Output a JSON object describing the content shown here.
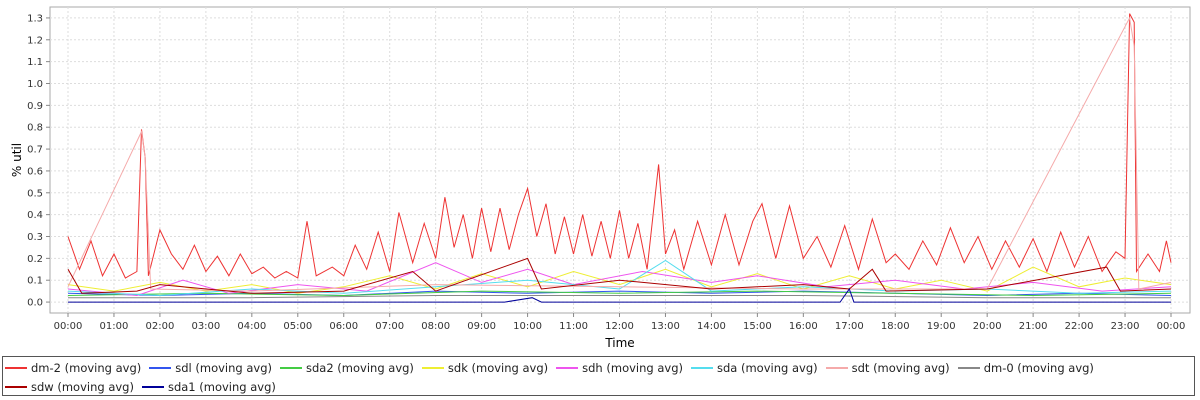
{
  "chart_data": {
    "type": "line",
    "title": "",
    "xlabel": "Time",
    "ylabel": "% util",
    "ylim": [
      -0.05,
      1.35
    ],
    "yticks": [
      "0.0",
      "0.1",
      "0.2",
      "0.3",
      "0.4",
      "0.5",
      "0.6",
      "0.7",
      "0.8",
      "0.9",
      "1.0",
      "1.1",
      "1.2",
      "1.3"
    ],
    "xticks": [
      "00:00",
      "01:00",
      "02:00",
      "03:00",
      "04:00",
      "05:00",
      "06:00",
      "07:00",
      "08:00",
      "09:00",
      "10:00",
      "11:00",
      "12:00",
      "13:00",
      "14:00",
      "15:00",
      "16:00",
      "17:00",
      "18:00",
      "19:00",
      "20:00",
      "21:00",
      "22:00",
      "23:00",
      "00:00"
    ],
    "xlim_hours": [
      0,
      24
    ],
    "grid": true,
    "legend_position": "bottom",
    "series": [
      {
        "name": "dm-2 (moving avg)",
        "color": "#ee3333",
        "points": [
          [
            0,
            0.3
          ],
          [
            0.25,
            0.15
          ],
          [
            0.5,
            0.28
          ],
          [
            0.75,
            0.12
          ],
          [
            1.0,
            0.22
          ],
          [
            1.25,
            0.11
          ],
          [
            1.5,
            0.14
          ],
          [
            1.6,
            0.79
          ],
          [
            1.68,
            0.66
          ],
          [
            1.75,
            0.12
          ],
          [
            2.0,
            0.33
          ],
          [
            2.25,
            0.22
          ],
          [
            2.5,
            0.15
          ],
          [
            2.75,
            0.26
          ],
          [
            3.0,
            0.14
          ],
          [
            3.25,
            0.21
          ],
          [
            3.5,
            0.12
          ],
          [
            3.75,
            0.22
          ],
          [
            4.0,
            0.13
          ],
          [
            4.25,
            0.16
          ],
          [
            4.5,
            0.11
          ],
          [
            4.75,
            0.14
          ],
          [
            5.0,
            0.11
          ],
          [
            5.2,
            0.37
          ],
          [
            5.4,
            0.12
          ],
          [
            5.75,
            0.16
          ],
          [
            6.0,
            0.12
          ],
          [
            6.25,
            0.26
          ],
          [
            6.5,
            0.15
          ],
          [
            6.75,
            0.32
          ],
          [
            7.0,
            0.14
          ],
          [
            7.2,
            0.41
          ],
          [
            7.5,
            0.18
          ],
          [
            7.75,
            0.36
          ],
          [
            8.0,
            0.2
          ],
          [
            8.2,
            0.48
          ],
          [
            8.4,
            0.25
          ],
          [
            8.6,
            0.4
          ],
          [
            8.8,
            0.2
          ],
          [
            9.0,
            0.43
          ],
          [
            9.2,
            0.23
          ],
          [
            9.4,
            0.43
          ],
          [
            9.6,
            0.24
          ],
          [
            9.8,
            0.4
          ],
          [
            10.0,
            0.52
          ],
          [
            10.2,
            0.3
          ],
          [
            10.4,
            0.45
          ],
          [
            10.6,
            0.22
          ],
          [
            10.8,
            0.39
          ],
          [
            11.0,
            0.22
          ],
          [
            11.2,
            0.4
          ],
          [
            11.4,
            0.21
          ],
          [
            11.6,
            0.37
          ],
          [
            11.8,
            0.2
          ],
          [
            12.0,
            0.42
          ],
          [
            12.2,
            0.2
          ],
          [
            12.4,
            0.36
          ],
          [
            12.6,
            0.15
          ],
          [
            12.85,
            0.63
          ],
          [
            13.0,
            0.22
          ],
          [
            13.2,
            0.33
          ],
          [
            13.4,
            0.15
          ],
          [
            13.7,
            0.37
          ],
          [
            14.0,
            0.17
          ],
          [
            14.3,
            0.4
          ],
          [
            14.6,
            0.17
          ],
          [
            14.9,
            0.37
          ],
          [
            15.1,
            0.45
          ],
          [
            15.4,
            0.2
          ],
          [
            15.7,
            0.44
          ],
          [
            16.0,
            0.2
          ],
          [
            16.3,
            0.3
          ],
          [
            16.6,
            0.16
          ],
          [
            16.9,
            0.35
          ],
          [
            17.2,
            0.15
          ],
          [
            17.5,
            0.38
          ],
          [
            17.8,
            0.18
          ],
          [
            18.0,
            0.22
          ],
          [
            18.3,
            0.15
          ],
          [
            18.6,
            0.28
          ],
          [
            18.9,
            0.17
          ],
          [
            19.2,
            0.34
          ],
          [
            19.5,
            0.18
          ],
          [
            19.8,
            0.3
          ],
          [
            20.1,
            0.15
          ],
          [
            20.4,
            0.28
          ],
          [
            20.7,
            0.16
          ],
          [
            21.0,
            0.29
          ],
          [
            21.3,
            0.14
          ],
          [
            21.6,
            0.32
          ],
          [
            21.9,
            0.16
          ],
          [
            22.2,
            0.3
          ],
          [
            22.5,
            0.14
          ],
          [
            22.8,
            0.23
          ],
          [
            23.0,
            0.2
          ],
          [
            23.1,
            1.32
          ],
          [
            23.2,
            1.28
          ],
          [
            23.25,
            0.14
          ],
          [
            23.5,
            0.22
          ],
          [
            23.75,
            0.14
          ],
          [
            23.9,
            0.28
          ],
          [
            24.0,
            0.18
          ]
        ]
      },
      {
        "name": "sdl (moving avg)",
        "color": "#3355ee",
        "points": [
          [
            0,
            0.04
          ],
          [
            2,
            0.03
          ],
          [
            4,
            0.04
          ],
          [
            6,
            0.03
          ],
          [
            8,
            0.05
          ],
          [
            10,
            0.04
          ],
          [
            12,
            0.05
          ],
          [
            14,
            0.04
          ],
          [
            16,
            0.05
          ],
          [
            18,
            0.04
          ],
          [
            20,
            0.03
          ],
          [
            22,
            0.04
          ],
          [
            24,
            0.03
          ]
        ]
      },
      {
        "name": "sda2 (moving avg)",
        "color": "#44cc44",
        "points": [
          [
            0,
            0.03
          ],
          [
            3,
            0.04
          ],
          [
            6,
            0.03
          ],
          [
            9,
            0.05
          ],
          [
            12,
            0.04
          ],
          [
            15,
            0.05
          ],
          [
            18,
            0.04
          ],
          [
            21,
            0.03
          ],
          [
            24,
            0.04
          ]
        ]
      },
      {
        "name": "sdk (moving avg)",
        "color": "#eeee33",
        "points": [
          [
            0,
            0.08
          ],
          [
            1,
            0.05
          ],
          [
            2,
            0.09
          ],
          [
            3,
            0.05
          ],
          [
            4,
            0.08
          ],
          [
            5,
            0.04
          ],
          [
            6,
            0.07
          ],
          [
            7,
            0.12
          ],
          [
            8,
            0.06
          ],
          [
            9,
            0.13
          ],
          [
            10,
            0.07
          ],
          [
            11,
            0.14
          ],
          [
            12,
            0.08
          ],
          [
            13,
            0.15
          ],
          [
            14,
            0.07
          ],
          [
            15,
            0.13
          ],
          [
            16,
            0.06
          ],
          [
            17,
            0.12
          ],
          [
            18,
            0.06
          ],
          [
            19,
            0.1
          ],
          [
            20,
            0.05
          ],
          [
            21,
            0.16
          ],
          [
            22,
            0.07
          ],
          [
            23,
            0.11
          ],
          [
            24,
            0.08
          ]
        ]
      },
      {
        "name": "sdh (moving avg)",
        "color": "#ee55ee",
        "points": [
          [
            0,
            0.06
          ],
          [
            1.5,
            0.03
          ],
          [
            2.5,
            0.1
          ],
          [
            3.5,
            0.04
          ],
          [
            5,
            0.08
          ],
          [
            6.5,
            0.05
          ],
          [
            8,
            0.18
          ],
          [
            9,
            0.09
          ],
          [
            10,
            0.15
          ],
          [
            11,
            0.08
          ],
          [
            12.5,
            0.14
          ],
          [
            14,
            0.09
          ],
          [
            15,
            0.12
          ],
          [
            16.5,
            0.07
          ],
          [
            18,
            0.1
          ],
          [
            19.5,
            0.06
          ],
          [
            21,
            0.09
          ],
          [
            22.5,
            0.05
          ],
          [
            24,
            0.07
          ]
        ]
      },
      {
        "name": "sda (moving avg)",
        "color": "#55ddee",
        "points": [
          [
            0,
            0.05
          ],
          [
            2,
            0.03
          ],
          [
            4,
            0.06
          ],
          [
            6,
            0.04
          ],
          [
            8,
            0.07
          ],
          [
            10,
            0.1
          ],
          [
            12,
            0.06
          ],
          [
            13,
            0.19
          ],
          [
            14,
            0.05
          ],
          [
            16,
            0.07
          ],
          [
            18,
            0.05
          ],
          [
            20,
            0.06
          ],
          [
            22,
            0.04
          ],
          [
            24,
            0.05
          ]
        ]
      },
      {
        "name": "sdt (moving avg)",
        "color": "#f5aaaa",
        "points": [
          [
            0,
            0.07
          ],
          [
            1.6,
            0.78
          ],
          [
            1.68,
            0.66
          ],
          [
            1.8,
            0.06
          ],
          [
            4,
            0.05
          ],
          [
            8,
            0.08
          ],
          [
            12,
            0.07
          ],
          [
            16,
            0.06
          ],
          [
            20,
            0.06
          ],
          [
            23.1,
            1.3
          ],
          [
            23.2,
            1.17
          ],
          [
            23.3,
            0.06
          ],
          [
            24,
            0.09
          ]
        ]
      },
      {
        "name": "dm-0 (moving avg)",
        "color": "#888888",
        "points": [
          [
            0,
            0.02
          ],
          [
            4,
            0.02
          ],
          [
            8,
            0.03
          ],
          [
            12,
            0.03
          ],
          [
            16,
            0.03
          ],
          [
            20,
            0.02
          ],
          [
            24,
            0.02
          ]
        ]
      },
      {
        "name": "sdw (moving avg)",
        "color": "#aa0000",
        "points": [
          [
            0,
            0.15
          ],
          [
            0.3,
            0.04
          ],
          [
            1.5,
            0.05
          ],
          [
            2,
            0.08
          ],
          [
            4,
            0.04
          ],
          [
            6,
            0.05
          ],
          [
            7.5,
            0.14
          ],
          [
            8,
            0.05
          ],
          [
            10,
            0.2
          ],
          [
            10.3,
            0.06
          ],
          [
            12,
            0.1
          ],
          [
            14,
            0.06
          ],
          [
            16,
            0.08
          ],
          [
            17,
            0.06
          ],
          [
            17.5,
            0.15
          ],
          [
            17.8,
            0.05
          ],
          [
            20,
            0.06
          ],
          [
            22.6,
            0.16
          ],
          [
            22.9,
            0.05
          ],
          [
            24,
            0.06
          ]
        ]
      },
      {
        "name": "sda1 (moving avg)",
        "color": "#000099",
        "points": [
          [
            0,
            0.0
          ],
          [
            6,
            0.0
          ],
          [
            9.5,
            0.0
          ],
          [
            10.1,
            0.02
          ],
          [
            10.3,
            0.0
          ],
          [
            16.8,
            0.0
          ],
          [
            17.0,
            0.06
          ],
          [
            17.1,
            0.0
          ],
          [
            24,
            0.0
          ]
        ]
      }
    ]
  }
}
